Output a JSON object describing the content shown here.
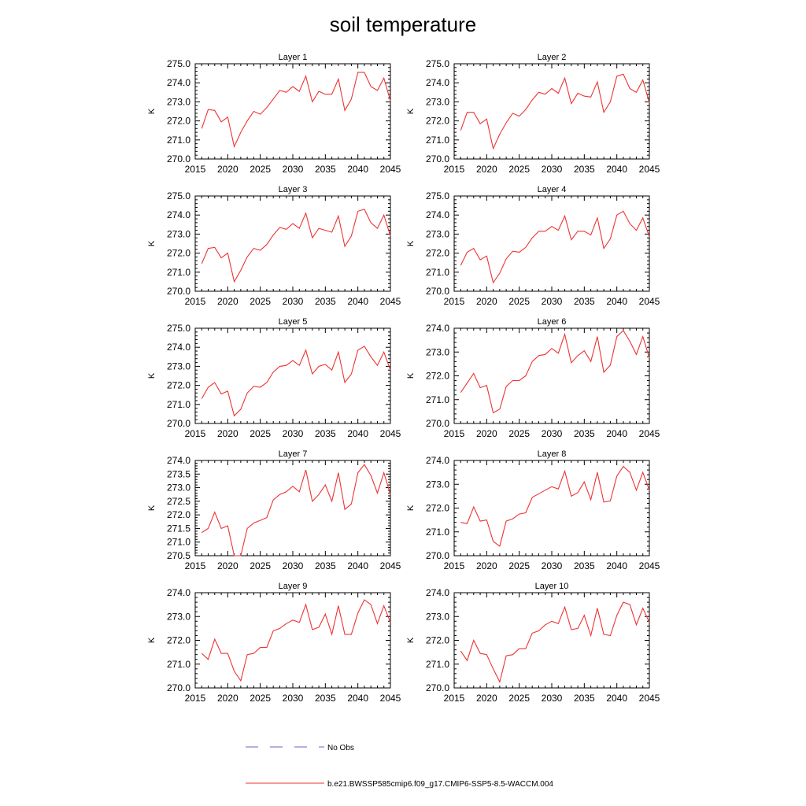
{
  "figure": {
    "title": "soil temperature",
    "legend": [
      {
        "label": "No Obs",
        "color": "#6666cc",
        "style": "dashed"
      },
      {
        "label": "b.e21.BWSSP585cmip6.f09_g17.CMIP6-SSP5-8.5-WACCM.004",
        "color": "#ee3333",
        "style": "solid"
      }
    ]
  },
  "chart_data": [
    {
      "type": "line",
      "title": "Layer 1",
      "ylabel": "K",
      "xlim": [
        2015,
        2045
      ],
      "ylim": [
        270.0,
        275.0
      ],
      "xticks": [
        2015,
        2020,
        2025,
        2030,
        2035,
        2040,
        2045
      ],
      "yticks": [
        270.0,
        271.0,
        272.0,
        273.0,
        274.0,
        275.0
      ],
      "ytick_decimals": 1,
      "x": [
        2016,
        2017,
        2018,
        2019,
        2020,
        2021,
        2022,
        2023,
        2024,
        2025,
        2026,
        2027,
        2028,
        2029,
        2030,
        2031,
        2032,
        2033,
        2034,
        2035,
        2036,
        2037,
        2038,
        2039,
        2040,
        2041,
        2042,
        2043,
        2044,
        2045
      ],
      "series": [
        {
          "name": "b.e21.BWSSP585cmip6.f09_g17.CMIP6-SSP5-8.5-WACCM.004",
          "color": "#ee3333",
          "values": [
            271.6,
            272.6,
            272.55,
            271.95,
            272.2,
            270.65,
            271.4,
            272.0,
            272.5,
            272.35,
            272.7,
            273.15,
            273.6,
            273.5,
            273.8,
            273.55,
            274.35,
            273.0,
            273.55,
            273.4,
            273.4,
            274.2,
            272.55,
            273.15,
            274.55,
            274.55,
            273.8,
            273.6,
            274.25,
            273.05
          ]
        }
      ]
    },
    {
      "type": "line",
      "title": "Layer 2",
      "ylabel": "K",
      "xlim": [
        2015,
        2045
      ],
      "ylim": [
        270.0,
        275.0
      ],
      "xticks": [
        2015,
        2020,
        2025,
        2030,
        2035,
        2040,
        2045
      ],
      "yticks": [
        270.0,
        271.0,
        272.0,
        273.0,
        274.0,
        275.0
      ],
      "ytick_decimals": 1,
      "x": [
        2016,
        2017,
        2018,
        2019,
        2020,
        2021,
        2022,
        2023,
        2024,
        2025,
        2026,
        2027,
        2028,
        2029,
        2030,
        2031,
        2032,
        2033,
        2034,
        2035,
        2036,
        2037,
        2038,
        2039,
        2040,
        2041,
        2042,
        2043,
        2044,
        2045
      ],
      "series": [
        {
          "name": "b.e21.BWSSP585cmip6.f09_g17.CMIP6-SSP5-8.5-WACCM.004",
          "color": "#ee3333",
          "values": [
            271.5,
            272.45,
            272.45,
            271.85,
            272.1,
            270.55,
            271.3,
            271.9,
            272.4,
            272.25,
            272.6,
            273.1,
            273.5,
            273.4,
            273.7,
            273.45,
            274.25,
            272.9,
            273.45,
            273.3,
            273.25,
            274.05,
            272.45,
            273.0,
            274.35,
            274.45,
            273.7,
            273.5,
            274.15,
            272.95
          ]
        }
      ]
    },
    {
      "type": "line",
      "title": "Layer 3",
      "ylabel": "K",
      "xlim": [
        2015,
        2045
      ],
      "ylim": [
        270.0,
        275.0
      ],
      "xticks": [
        2015,
        2020,
        2025,
        2030,
        2035,
        2040,
        2045
      ],
      "yticks": [
        270.0,
        271.0,
        272.0,
        273.0,
        274.0,
        275.0
      ],
      "ytick_decimals": 1,
      "x": [
        2016,
        2017,
        2018,
        2019,
        2020,
        2021,
        2022,
        2023,
        2024,
        2025,
        2026,
        2027,
        2028,
        2029,
        2030,
        2031,
        2032,
        2033,
        2034,
        2035,
        2036,
        2037,
        2038,
        2039,
        2040,
        2041,
        2042,
        2043,
        2044,
        2045
      ],
      "series": [
        {
          "name": "b.e21.BWSSP585cmip6.f09_g17.CMIP6-SSP5-8.5-WACCM.004",
          "color": "#ee3333",
          "values": [
            271.45,
            272.25,
            272.3,
            271.75,
            272.0,
            270.5,
            271.1,
            271.8,
            272.25,
            272.15,
            272.45,
            272.95,
            273.35,
            273.25,
            273.55,
            273.3,
            274.1,
            272.8,
            273.3,
            273.2,
            273.1,
            273.95,
            272.35,
            272.9,
            274.2,
            274.3,
            273.6,
            273.3,
            274.0,
            272.9
          ]
        }
      ]
    },
    {
      "type": "line",
      "title": "Layer 4",
      "ylabel": "K",
      "xlim": [
        2015,
        2045
      ],
      "ylim": [
        270.0,
        275.0
      ],
      "xticks": [
        2015,
        2020,
        2025,
        2030,
        2035,
        2040,
        2045
      ],
      "yticks": [
        270.0,
        271.0,
        272.0,
        273.0,
        274.0,
        275.0
      ],
      "ytick_decimals": 1,
      "x": [
        2016,
        2017,
        2018,
        2019,
        2020,
        2021,
        2022,
        2023,
        2024,
        2025,
        2026,
        2027,
        2028,
        2029,
        2030,
        2031,
        2032,
        2033,
        2034,
        2035,
        2036,
        2037,
        2038,
        2039,
        2040,
        2041,
        2042,
        2043,
        2044,
        2045
      ],
      "series": [
        {
          "name": "b.e21.BWSSP585cmip6.f09_g17.CMIP6-SSP5-8.5-WACCM.004",
          "color": "#ee3333",
          "values": [
            271.35,
            272.05,
            272.25,
            271.65,
            271.85,
            270.45,
            270.95,
            271.7,
            272.1,
            272.05,
            272.3,
            272.8,
            273.15,
            273.15,
            273.4,
            273.2,
            273.95,
            272.7,
            273.15,
            273.15,
            272.95,
            273.85,
            272.25,
            272.75,
            274.0,
            274.2,
            273.55,
            273.2,
            273.85,
            272.85
          ]
        }
      ]
    },
    {
      "type": "line",
      "title": "Layer 5",
      "ylabel": "K",
      "xlim": [
        2015,
        2045
      ],
      "ylim": [
        270.0,
        275.0
      ],
      "xticks": [
        2015,
        2020,
        2025,
        2030,
        2035,
        2040,
        2045
      ],
      "yticks": [
        270.0,
        271.0,
        272.0,
        273.0,
        274.0,
        275.0
      ],
      "ytick_decimals": 1,
      "x": [
        2016,
        2017,
        2018,
        2019,
        2020,
        2021,
        2022,
        2023,
        2024,
        2025,
        2026,
        2027,
        2028,
        2029,
        2030,
        2031,
        2032,
        2033,
        2034,
        2035,
        2036,
        2037,
        2038,
        2039,
        2040,
        2041,
        2042,
        2043,
        2044,
        2045
      ],
      "series": [
        {
          "name": "b.e21.BWSSP585cmip6.f09_g17.CMIP6-SSP5-8.5-WACCM.004",
          "color": "#ee3333",
          "values": [
            271.3,
            271.9,
            272.15,
            271.55,
            271.7,
            270.4,
            270.75,
            271.6,
            271.95,
            271.9,
            272.15,
            272.7,
            273.0,
            273.05,
            273.3,
            273.05,
            273.85,
            272.6,
            273.0,
            273.1,
            272.8,
            273.75,
            272.15,
            272.6,
            273.85,
            274.05,
            273.5,
            273.05,
            273.75,
            272.8
          ]
        }
      ]
    },
    {
      "type": "line",
      "title": "Layer 6",
      "ylabel": "K",
      "xlim": [
        2015,
        2045
      ],
      "ylim": [
        270.0,
        274.0
      ],
      "xticks": [
        2015,
        2020,
        2025,
        2030,
        2035,
        2040,
        2045
      ],
      "yticks": [
        270.0,
        271.0,
        272.0,
        273.0,
        274.0
      ],
      "ytick_decimals": 1,
      "x": [
        2016,
        2017,
        2018,
        2019,
        2020,
        2021,
        2022,
        2023,
        2024,
        2025,
        2026,
        2027,
        2028,
        2029,
        2030,
        2031,
        2032,
        2033,
        2034,
        2035,
        2036,
        2037,
        2038,
        2039,
        2040,
        2041,
        2042,
        2043,
        2044,
        2045
      ],
      "series": [
        {
          "name": "b.e21.BWSSP585cmip6.f09_g17.CMIP6-SSP5-8.5-WACCM.004",
          "color": "#ee3333",
          "values": [
            271.3,
            271.7,
            272.1,
            271.5,
            271.6,
            270.45,
            270.6,
            271.55,
            271.8,
            271.8,
            272.0,
            272.6,
            272.85,
            272.9,
            273.15,
            272.95,
            273.75,
            272.55,
            272.85,
            273.05,
            272.6,
            273.65,
            272.15,
            272.45,
            273.65,
            273.9,
            273.45,
            272.9,
            273.65,
            272.75
          ]
        }
      ]
    },
    {
      "type": "line",
      "title": "Layer 7",
      "ylabel": "K",
      "xlim": [
        2015,
        2045
      ],
      "ylim": [
        270.5,
        274.0
      ],
      "xticks": [
        2015,
        2020,
        2025,
        2030,
        2035,
        2040,
        2045
      ],
      "yticks": [
        270.5,
        271.0,
        271.5,
        272.0,
        272.5,
        273.0,
        273.5,
        274.0
      ],
      "ytick_decimals": 1,
      "x": [
        2016,
        2017,
        2018,
        2019,
        2020,
        2021,
        2022,
        2023,
        2024,
        2025,
        2026,
        2027,
        2028,
        2029,
        2030,
        2031,
        2032,
        2033,
        2034,
        2035,
        2036,
        2037,
        2038,
        2039,
        2040,
        2041,
        2042,
        2043,
        2044,
        2045
      ],
      "series": [
        {
          "name": "b.e21.BWSSP585cmip6.f09_g17.CMIP6-SSP5-8.5-WACCM.004",
          "color": "#ee3333",
          "values": [
            271.35,
            271.5,
            272.1,
            271.5,
            271.6,
            270.5,
            270.5,
            271.5,
            271.7,
            271.8,
            271.9,
            272.55,
            272.75,
            272.85,
            273.05,
            272.85,
            273.65,
            272.5,
            272.75,
            273.1,
            272.5,
            273.55,
            272.2,
            272.4,
            273.55,
            273.85,
            273.45,
            272.8,
            273.55,
            272.75
          ]
        }
      ]
    },
    {
      "type": "line",
      "title": "Layer 8",
      "ylabel": "K",
      "xlim": [
        2015,
        2045
      ],
      "ylim": [
        270.0,
        274.0
      ],
      "xticks": [
        2015,
        2020,
        2025,
        2030,
        2035,
        2040,
        2045
      ],
      "yticks": [
        270.0,
        271.0,
        272.0,
        273.0,
        274.0
      ],
      "ytick_decimals": 1,
      "x": [
        2016,
        2017,
        2018,
        2019,
        2020,
        2021,
        2022,
        2023,
        2024,
        2025,
        2026,
        2027,
        2028,
        2029,
        2030,
        2031,
        2032,
        2033,
        2034,
        2035,
        2036,
        2037,
        2038,
        2039,
        2040,
        2041,
        2042,
        2043,
        2044,
        2045
      ],
      "series": [
        {
          "name": "b.e21.BWSSP585cmip6.f09_g17.CMIP6-SSP5-8.5-WACCM.004",
          "color": "#ee3333",
          "values": [
            271.4,
            271.35,
            272.05,
            271.45,
            271.5,
            270.6,
            270.4,
            271.45,
            271.55,
            271.75,
            271.8,
            272.45,
            272.6,
            272.75,
            272.9,
            272.8,
            273.55,
            272.5,
            272.65,
            273.1,
            272.35,
            273.5,
            272.25,
            272.3,
            273.35,
            273.75,
            273.5,
            272.75,
            273.5,
            272.75
          ]
        }
      ]
    },
    {
      "type": "line",
      "title": "Layer 9",
      "ylabel": "K",
      "xlim": [
        2015,
        2045
      ],
      "ylim": [
        270.0,
        274.0
      ],
      "xticks": [
        2015,
        2020,
        2025,
        2030,
        2035,
        2040,
        2045
      ],
      "yticks": [
        270.0,
        271.0,
        272.0,
        273.0,
        274.0
      ],
      "ytick_decimals": 1,
      "x": [
        2016,
        2017,
        2018,
        2019,
        2020,
        2021,
        2022,
        2023,
        2024,
        2025,
        2026,
        2027,
        2028,
        2029,
        2030,
        2031,
        2032,
        2033,
        2034,
        2035,
        2036,
        2037,
        2038,
        2039,
        2040,
        2041,
        2042,
        2043,
        2044,
        2045
      ],
      "series": [
        {
          "name": "b.e21.BWSSP585cmip6.f09_g17.CMIP6-SSP5-8.5-WACCM.004",
          "color": "#ee3333",
          "values": [
            271.45,
            271.2,
            272.05,
            271.45,
            271.45,
            270.7,
            270.3,
            271.4,
            271.45,
            271.7,
            271.7,
            272.4,
            272.5,
            272.7,
            272.85,
            272.75,
            273.5,
            272.45,
            272.55,
            273.1,
            272.25,
            273.45,
            272.25,
            272.25,
            273.15,
            273.7,
            273.5,
            272.7,
            273.45,
            272.75
          ]
        }
      ]
    },
    {
      "type": "line",
      "title": "Layer 10",
      "ylabel": "K",
      "xlim": [
        2015,
        2045
      ],
      "ylim": [
        270.0,
        274.0
      ],
      "xticks": [
        2015,
        2020,
        2025,
        2030,
        2035,
        2040,
        2045
      ],
      "yticks": [
        270.0,
        271.0,
        272.0,
        273.0,
        274.0
      ],
      "ytick_decimals": 1,
      "x": [
        2016,
        2017,
        2018,
        2019,
        2020,
        2021,
        2022,
        2023,
        2024,
        2025,
        2026,
        2027,
        2028,
        2029,
        2030,
        2031,
        2032,
        2033,
        2034,
        2035,
        2036,
        2037,
        2038,
        2039,
        2040,
        2041,
        2042,
        2043,
        2044,
        2045
      ],
      "series": [
        {
          "name": "b.e21.BWSSP585cmip6.f09_g17.CMIP6-SSP5-8.5-WACCM.004",
          "color": "#ee3333",
          "values": [
            271.55,
            271.15,
            272.0,
            271.45,
            271.4,
            270.8,
            270.25,
            271.35,
            271.4,
            271.65,
            271.65,
            272.3,
            272.4,
            272.65,
            272.8,
            272.7,
            273.4,
            272.45,
            272.5,
            273.05,
            272.2,
            273.35,
            272.25,
            272.2,
            273.05,
            273.6,
            273.5,
            272.65,
            273.35,
            272.75
          ]
        }
      ]
    }
  ]
}
